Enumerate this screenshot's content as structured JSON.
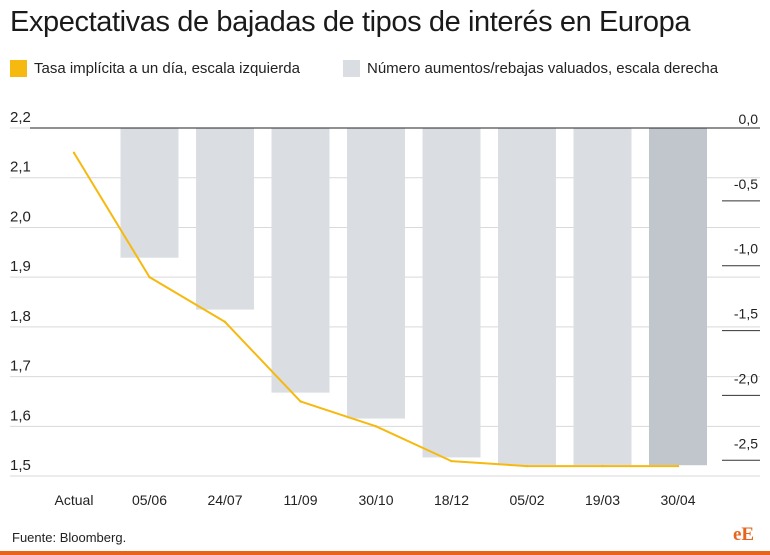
{
  "header": {
    "title": "Expectativas de bajadas de tipos de interés en Europa"
  },
  "legend": {
    "line_label": "Tasa implícita a un día, escala izquierda",
    "bar_label": "Número aumentos/rebajas valuados, escala derecha"
  },
  "footer": {
    "source": "Fuente: Bloomberg.",
    "logo": "eE"
  },
  "colors": {
    "line": "#f6b90f",
    "bar": "#dadee2",
    "bar_highlight": "#c0c6cc",
    "brand": "#e8641c"
  },
  "chart_data": {
    "type": "bar+line",
    "categories": [
      "Actual",
      "05/06",
      "24/07",
      "11/09",
      "30/10",
      "18/12",
      "05/02",
      "19/03",
      "30/04"
    ],
    "bars": {
      "name": "Número aumentos/rebajas valuados, escala derecha",
      "axis": "right",
      "values": [
        null,
        -1.0,
        -1.4,
        -2.04,
        -2.24,
        -2.54,
        -2.6,
        -2.6,
        -2.6
      ],
      "highlight_index": 8
    },
    "line": {
      "name": "Tasa implícita a un día, escala izquierda",
      "axis": "left",
      "values": [
        2.15,
        1.9,
        1.81,
        1.65,
        1.6,
        1.53,
        1.52,
        1.52,
        1.52
      ]
    },
    "left_axis": {
      "ticks": [
        "2,2",
        "2,1",
        "2,0",
        "1,9",
        "1,8",
        "1,7",
        "1,6",
        "1,5"
      ],
      "tick_values": [
        2.2,
        2.1,
        2.0,
        1.9,
        1.8,
        1.7,
        1.6,
        1.5
      ],
      "range": [
        1.48,
        2.2
      ]
    },
    "right_axis": {
      "ticks": [
        "0,0",
        "-0,5",
        "-1,0",
        "-1,5",
        "-2,0",
        "-2,5"
      ],
      "tick_values": [
        0,
        -0.5,
        -1.0,
        -1.5,
        -2.0,
        -2.5
      ],
      "range": [
        -2.76,
        0.0
      ]
    },
    "grid": true
  }
}
